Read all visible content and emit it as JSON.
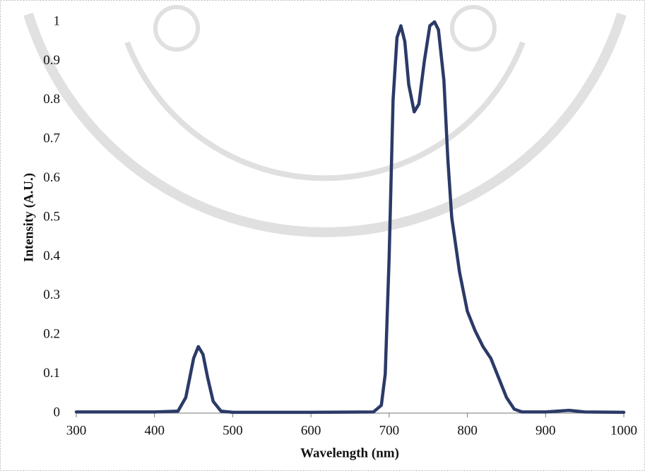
{
  "chart_data": {
    "type": "line",
    "xlabel": "Wavelength (nm)",
    "ylabel": "Intensity (A.U.)",
    "x": [
      300,
      400,
      430,
      440,
      445,
      450,
      456,
      462,
      468,
      475,
      485,
      500,
      600,
      680,
      690,
      695,
      700,
      705,
      710,
      715,
      720,
      725,
      732,
      738,
      745,
      752,
      758,
      763,
      770,
      775,
      780,
      790,
      800,
      810,
      820,
      830,
      840,
      850,
      860,
      870,
      900,
      930,
      950,
      1000
    ],
    "series": [
      {
        "color": "#2b3a67",
        "values": [
          0.003,
          0.003,
          0.005,
          0.04,
          0.09,
          0.14,
          0.17,
          0.15,
          0.09,
          0.03,
          0.005,
          0.002,
          0.002,
          0.003,
          0.02,
          0.1,
          0.4,
          0.8,
          0.96,
          0.99,
          0.95,
          0.84,
          0.77,
          0.79,
          0.9,
          0.99,
          1.0,
          0.98,
          0.85,
          0.65,
          0.5,
          0.36,
          0.26,
          0.21,
          0.17,
          0.14,
          0.09,
          0.04,
          0.01,
          0.003,
          0.003,
          0.007,
          0.003,
          0.002
        ]
      }
    ],
    "xlim": [
      300,
      1000
    ],
    "xticks": [
      300,
      400,
      500,
      600,
      700,
      800,
      900,
      1000
    ],
    "ylim": [
      0,
      1
    ],
    "yticks": [
      0,
      0.1,
      0.2,
      0.3,
      0.4,
      0.5,
      0.6,
      0.7,
      0.8,
      0.9,
      1
    ],
    "grid": false
  }
}
